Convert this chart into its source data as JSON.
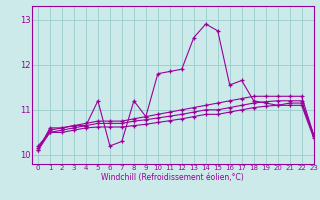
{
  "xlabel": "Windchill (Refroidissement éolien,°C)",
  "xlim": [
    -0.5,
    23
  ],
  "ylim": [
    9.8,
    13.3
  ],
  "yticks": [
    10,
    11,
    12,
    13
  ],
  "xticks": [
    0,
    1,
    2,
    3,
    4,
    5,
    6,
    7,
    8,
    9,
    10,
    11,
    12,
    13,
    14,
    15,
    16,
    17,
    18,
    19,
    20,
    21,
    22,
    23
  ],
  "bg_color": "#cceaea",
  "line_color": "#990099",
  "grid_color": "#99cccc",
  "lines": [
    [
      10.1,
      10.6,
      10.6,
      10.65,
      10.65,
      11.2,
      10.2,
      10.3,
      11.2,
      10.85,
      11.8,
      11.85,
      11.9,
      12.6,
      12.9,
      12.75,
      11.55,
      11.65,
      11.2,
      11.15,
      11.1,
      11.15,
      11.15,
      10.45
    ],
    [
      10.15,
      10.55,
      10.6,
      10.65,
      10.7,
      10.75,
      10.75,
      10.75,
      10.8,
      10.85,
      10.9,
      10.95,
      11.0,
      11.05,
      11.1,
      11.15,
      11.2,
      11.25,
      11.3,
      11.3,
      11.3,
      11.3,
      11.3,
      10.45
    ],
    [
      10.2,
      10.5,
      10.55,
      10.6,
      10.65,
      10.7,
      10.7,
      10.7,
      10.75,
      10.78,
      10.82,
      10.86,
      10.9,
      10.95,
      11.0,
      11.0,
      11.05,
      11.1,
      11.15,
      11.18,
      11.2,
      11.2,
      11.2,
      10.42
    ],
    [
      10.1,
      10.5,
      10.5,
      10.55,
      10.6,
      10.62,
      10.62,
      10.62,
      10.65,
      10.68,
      10.72,
      10.76,
      10.8,
      10.85,
      10.9,
      10.9,
      10.95,
      11.0,
      11.05,
      11.08,
      11.1,
      11.1,
      11.1,
      10.38
    ]
  ]
}
